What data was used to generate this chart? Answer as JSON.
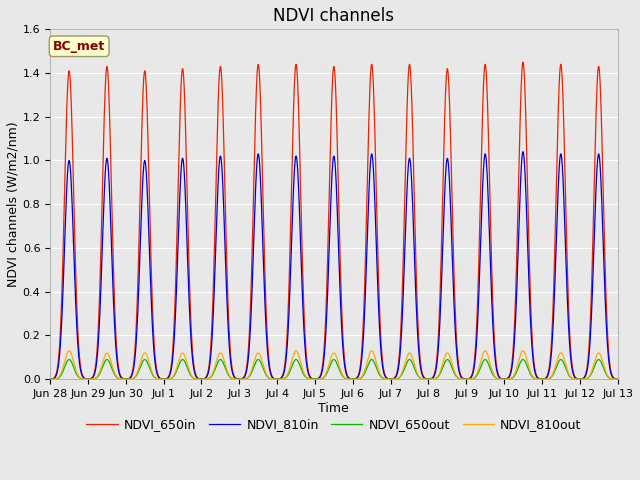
{
  "title": "NDVI channels",
  "xlabel": "Time",
  "ylabel": "NDVI channels (W/m2/nm)",
  "ylim": [
    0,
    1.6
  ],
  "plot_bg_color": "#e8e8e8",
  "fig_bg_color": "#e8e8e8",
  "legend_label": "BC_met",
  "series": {
    "NDVI_650in": {
      "color": "#ee2200",
      "peak_values": [
        1.41,
        1.43,
        1.41,
        1.42,
        1.43,
        1.44,
        1.44,
        1.43,
        1.44,
        1.44,
        1.42,
        1.44,
        1.45,
        1.44,
        1.43
      ]
    },
    "NDVI_810in": {
      "color": "#0000dd",
      "peak_values": [
        1.0,
        1.01,
        1.0,
        1.01,
        1.02,
        1.03,
        1.02,
        1.02,
        1.03,
        1.01,
        1.01,
        1.03,
        1.04,
        1.03,
        1.03
      ]
    },
    "NDVI_650out": {
      "color": "#00bb00",
      "peak_values": [
        0.09,
        0.09,
        0.09,
        0.09,
        0.09,
        0.09,
        0.09,
        0.09,
        0.09,
        0.09,
        0.09,
        0.09,
        0.09,
        0.09,
        0.09
      ]
    },
    "NDVI_810out": {
      "color": "#ffaa00",
      "peak_values": [
        0.13,
        0.12,
        0.12,
        0.12,
        0.12,
        0.12,
        0.13,
        0.12,
        0.13,
        0.12,
        0.12,
        0.13,
        0.13,
        0.12,
        0.12
      ]
    }
  },
  "x_tick_labels": [
    "Jun 28",
    "Jun 29",
    "Jun 30",
    "Jul 1",
    "Jul 2",
    "Jul 3",
    "Jul 4",
    "Jul 5",
    "Jul 6",
    "Jul 7",
    "Jul 8",
    "Jul 9",
    "Jul 10",
    "Jul 11",
    "Jul 12",
    "Jul 13"
  ],
  "num_days": 15,
  "points_per_day": 500,
  "peak_sigma": 0.12,
  "base_value": 0.0,
  "grid_color": "#ffffff",
  "title_fontsize": 12,
  "axis_fontsize": 9,
  "tick_fontsize": 8,
  "legend_fontsize": 9,
  "yticks": [
    0.0,
    0.2,
    0.4,
    0.6,
    0.8,
    1.0,
    1.2,
    1.4,
    1.6
  ]
}
